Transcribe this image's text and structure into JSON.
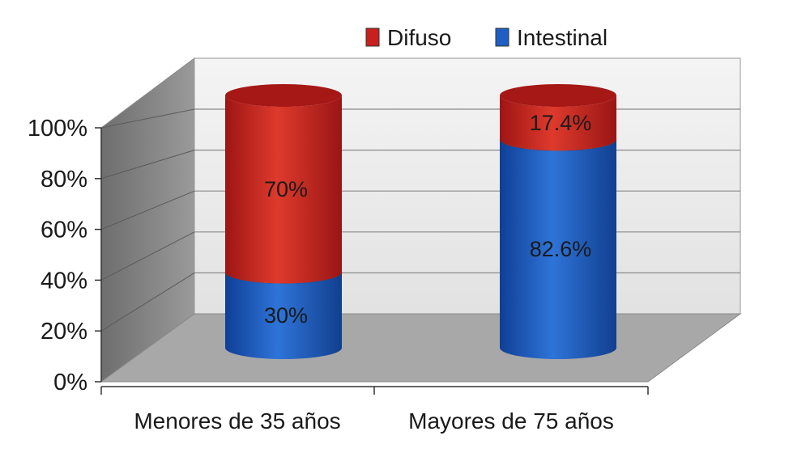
{
  "chart_data": {
    "type": "bar",
    "stacked": true,
    "categories": [
      "Menores de 35 años",
      "Mayores de 75 años"
    ],
    "series": [
      {
        "name": "Intestinal",
        "values": [
          30,
          82.6
        ],
        "labels": [
          "30%",
          "82.6%"
        ],
        "color": "#1f5fc4"
      },
      {
        "name": "Difuso",
        "values": [
          70,
          17.4
        ],
        "labels": [
          "70%",
          "17.4%"
        ],
        "color": "#c8201e"
      }
    ],
    "legend_order": [
      "Difuso",
      "Intestinal"
    ],
    "legend_position": "top-right",
    "y_ticks": [
      "0%",
      "20%",
      "40%",
      "60%",
      "80%",
      "100%"
    ],
    "ylim": [
      0,
      100
    ],
    "grid": true,
    "style": "3d-cylinder"
  }
}
